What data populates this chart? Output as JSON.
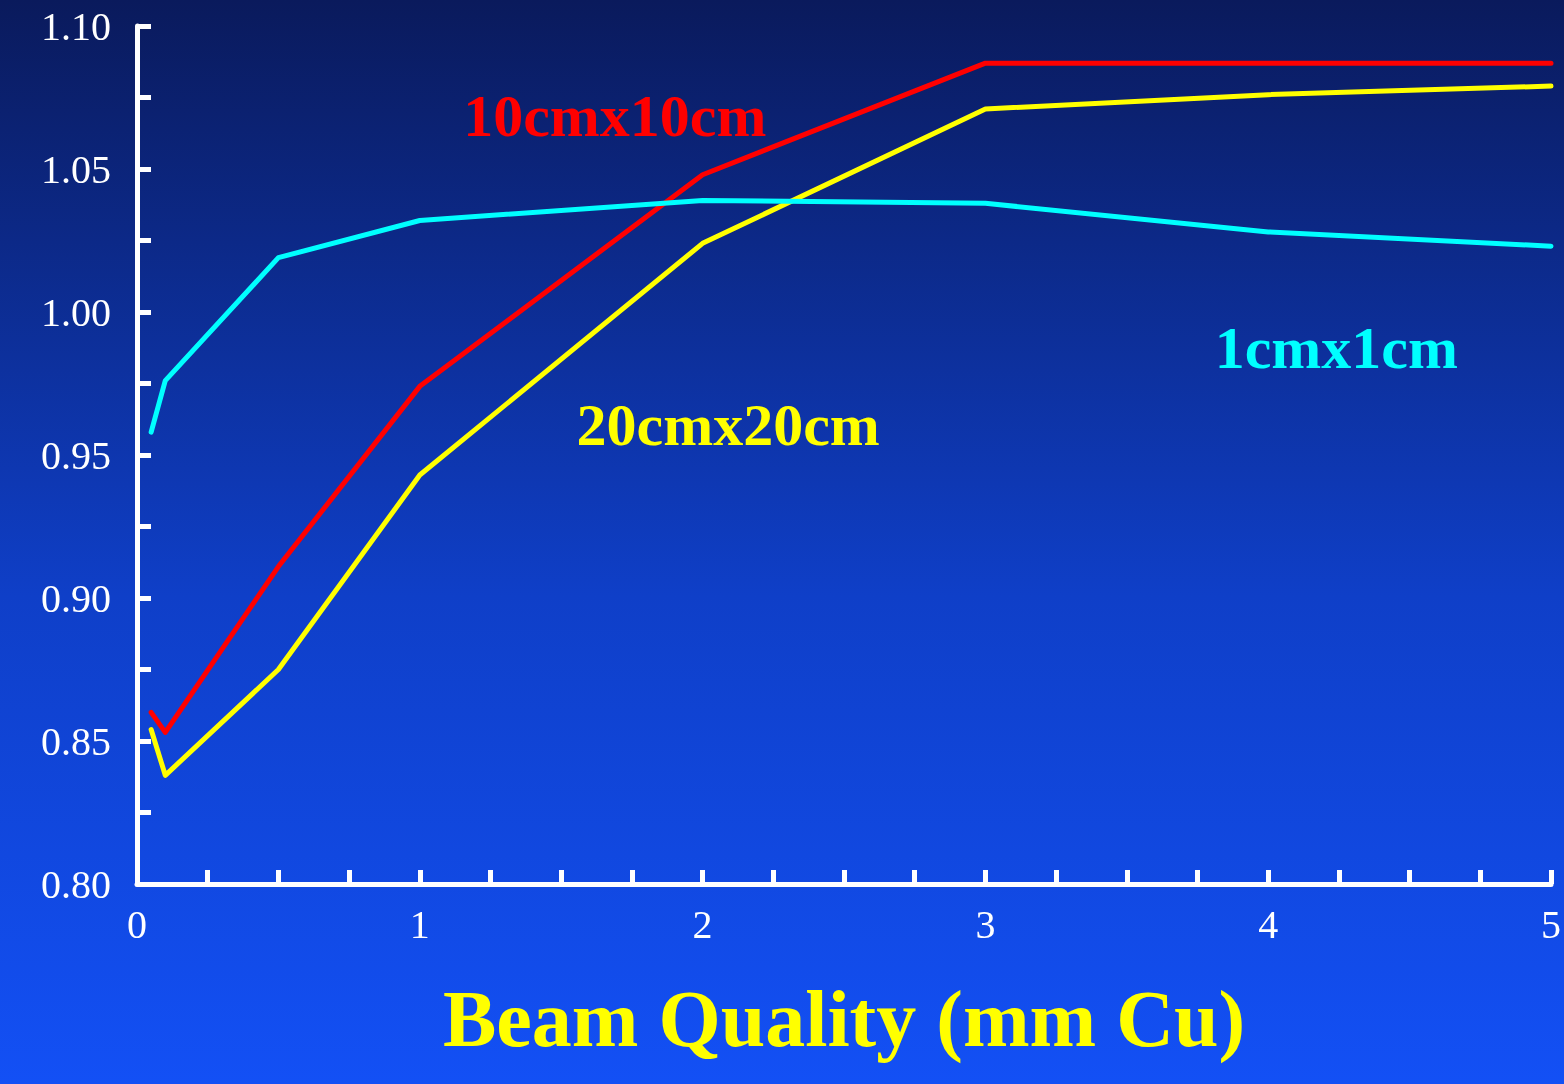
{
  "chart_data": {
    "type": "line",
    "xlabel": "Beam Quality (mm Cu)",
    "xlim": [
      0,
      5
    ],
    "ylim": [
      0.8,
      1.1
    ],
    "xticks": [
      0,
      {
        "value": 0.25,
        "label": null
      },
      {
        "value": 0.5,
        "label": null
      },
      {
        "value": 0.75,
        "label": null
      },
      1,
      {
        "value": 1.25,
        "label": null
      },
      {
        "value": 1.5,
        "label": null
      },
      {
        "value": 1.75,
        "label": null
      },
      2,
      {
        "value": 2.25,
        "label": null
      },
      {
        "value": 2.5,
        "label": null
      },
      {
        "value": 2.75,
        "label": null
      },
      3,
      {
        "value": 3.25,
        "label": null
      },
      {
        "value": 3.5,
        "label": null
      },
      {
        "value": 3.75,
        "label": null
      },
      4,
      {
        "value": 4.25,
        "label": null
      },
      {
        "value": 4.5,
        "label": null
      },
      {
        "value": 4.75,
        "label": null
      },
      5
    ],
    "yticks": [
      {
        "value": 0.8,
        "label": "0.80"
      },
      {
        "value": 0.825,
        "label": null
      },
      {
        "value": 0.85,
        "label": "0.85"
      },
      {
        "value": 0.875,
        "label": null
      },
      {
        "value": 0.9,
        "label": "0.90"
      },
      {
        "value": 0.925,
        "label": null
      },
      {
        "value": 0.95,
        "label": "0.95"
      },
      {
        "value": 0.975,
        "label": null
      },
      {
        "value": 1.0,
        "label": "1.00"
      },
      {
        "value": 1.025,
        "label": null
      },
      {
        "value": 1.05,
        "label": "1.05"
      },
      {
        "value": 1.075,
        "label": null
      },
      {
        "value": 1.1,
        "label": "1.10"
      }
    ],
    "x": [
      0.05,
      0.1,
      0.5,
      1,
      2,
      3,
      4,
      5
    ],
    "grid": false,
    "legend": false,
    "marker": "none",
    "line_style": "solid",
    "series": [
      {
        "name": "10cmx10cm",
        "color": "#ff0000",
        "values": [
          0.86,
          0.853,
          0.911,
          0.974,
          1.048,
          1.087,
          1.087,
          1.087
        ]
      },
      {
        "name": "20cmx20cm",
        "color": "#ffff00",
        "values": [
          0.854,
          0.838,
          0.875,
          0.943,
          1.024,
          1.071,
          1.076,
          1.079
        ]
      },
      {
        "name": "1cmx1cm",
        "color": "#00ffff",
        "values": [
          0.958,
          0.976,
          1.019,
          1.032,
          1.039,
          1.038,
          1.028,
          1.023
        ]
      }
    ]
  }
}
